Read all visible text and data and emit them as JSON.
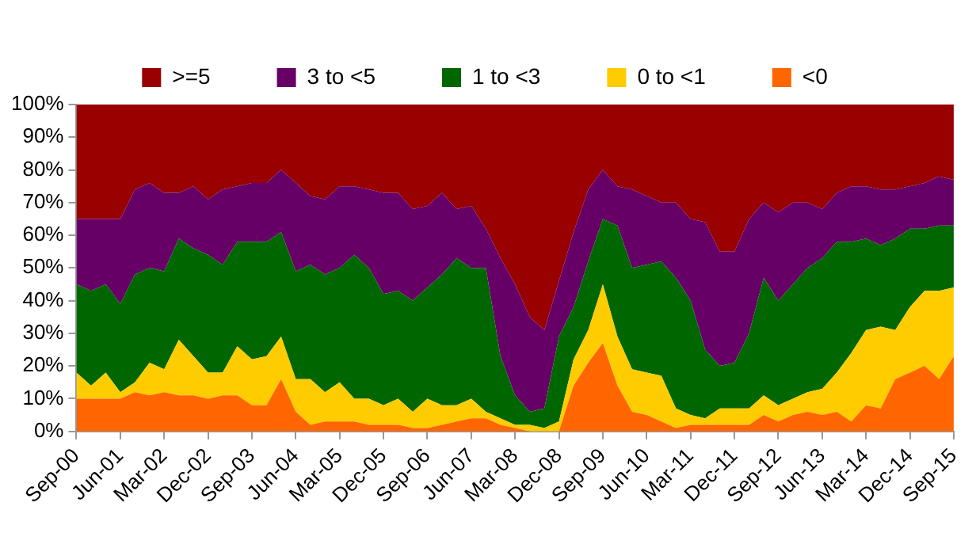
{
  "chart_data": {
    "type": "area",
    "stacked": true,
    "legend": "top",
    "grid": false,
    "marker": "none",
    "categories": [
      "Sep-00",
      null,
      null,
      "Jun-01",
      null,
      null,
      "Mar-02",
      null,
      null,
      "Dec-02",
      null,
      null,
      "Sep-03",
      null,
      null,
      "Jun-04",
      null,
      null,
      "Mar-05",
      null,
      null,
      "Dec-05",
      null,
      null,
      "Sep-06",
      null,
      null,
      "Jun-07",
      null,
      null,
      "Mar-08",
      null,
      null,
      "Dec-08",
      null,
      null,
      "Sep-09",
      null,
      null,
      "Jun-10",
      null,
      null,
      "Mar-11",
      null,
      null,
      "Dec-11",
      null,
      null,
      "Sep-12",
      null,
      null,
      "Jun-13",
      null,
      null,
      "Mar-14",
      null,
      null,
      "Dec-14",
      null,
      null,
      "Sep-15"
    ],
    "ylim": [
      0,
      100
    ],
    "yticks": [
      {
        "value": 0,
        "label": "0%"
      },
      {
        "value": 10,
        "label": "10%"
      },
      {
        "value": 20,
        "label": "20%"
      },
      {
        "value": 30,
        "label": "30%"
      },
      {
        "value": 40,
        "label": "40%"
      },
      {
        "value": 50,
        "label": "50%"
      },
      {
        "value": 60,
        "label": "60%"
      },
      {
        "value": 70,
        "label": "70%"
      },
      {
        "value": 80,
        "label": "80%"
      },
      {
        "value": 90,
        "label": "90%"
      },
      {
        "value": 100,
        "label": "100%"
      }
    ],
    "series": [
      {
        "name": "<0",
        "color": "#ff6600",
        "values": [
          10,
          10,
          10,
          10,
          12,
          11,
          12,
          11,
          11,
          10,
          11,
          11,
          8,
          8,
          16,
          6,
          2,
          3,
          3,
          3,
          2,
          2,
          2,
          1,
          1,
          2,
          3,
          4,
          4,
          2,
          1,
          0,
          0,
          0,
          14,
          21,
          27,
          14,
          6,
          5,
          3,
          1,
          2,
          2,
          2,
          2,
          2,
          5,
          3,
          5,
          6,
          5,
          6,
          3,
          8,
          7,
          16,
          18,
          20,
          16,
          23
        ]
      },
      {
        "name": "0 to <1",
        "color": "#ffcc00",
        "values": [
          8,
          4,
          8,
          2,
          3,
          10,
          7,
          17,
          12,
          8,
          7,
          15,
          14,
          15,
          13,
          10,
          14,
          9,
          12,
          7,
          8,
          6,
          8,
          5,
          9,
          6,
          5,
          6,
          2,
          2,
          1,
          2,
          1,
          3,
          8,
          10,
          18,
          15,
          13,
          13,
          14,
          6,
          3,
          2,
          5,
          5,
          5,
          6,
          5,
          5,
          6,
          8,
          12,
          21,
          23,
          25,
          15,
          20,
          23,
          27,
          21
        ]
      },
      {
        "name": "1 to <3",
        "color": "#006600",
        "values": [
          27,
          29,
          27,
          27,
          33,
          29,
          30,
          31,
          33,
          36,
          33,
          32,
          36,
          35,
          32,
          33,
          35,
          36,
          35,
          44,
          40,
          34,
          33,
          34,
          34,
          40,
          45,
          40,
          44,
          19,
          9,
          4,
          6,
          26,
          16,
          21,
          20,
          34,
          31,
          33,
          35,
          40,
          35,
          21,
          13,
          14,
          23,
          36,
          32,
          35,
          38,
          40,
          40,
          34,
          28,
          25,
          28,
          24,
          19,
          20,
          19
        ]
      },
      {
        "name": "3 to <5",
        "color": "#660066",
        "values": [
          20,
          22,
          20,
          26,
          26,
          26,
          24,
          14,
          19,
          17,
          23,
          17,
          18,
          18,
          19,
          27,
          21,
          23,
          25,
          21,
          24,
          31,
          30,
          28,
          25,
          25,
          15,
          19,
          12,
          30,
          34,
          29,
          24,
          17,
          23,
          22,
          15,
          12,
          24,
          21,
          18,
          23,
          25,
          39,
          35,
          34,
          35,
          23,
          27,
          25,
          20,
          15,
          15,
          17,
          16,
          17,
          15,
          13,
          14,
          15,
          14
        ]
      },
      {
        "name": ">=5",
        "color": "#990000",
        "values": [
          35,
          35,
          35,
          35,
          26,
          24,
          27,
          27,
          25,
          29,
          26,
          25,
          24,
          24,
          20,
          24,
          28,
          29,
          25,
          25,
          26,
          27,
          27,
          32,
          31,
          27,
          32,
          31,
          38,
          47,
          55,
          65,
          69,
          54,
          39,
          26,
          20,
          25,
          26,
          28,
          30,
          30,
          35,
          36,
          45,
          45,
          35,
          30,
          33,
          30,
          30,
          32,
          27,
          25,
          25,
          26,
          26,
          25,
          24,
          22,
          23
        ]
      }
    ]
  }
}
